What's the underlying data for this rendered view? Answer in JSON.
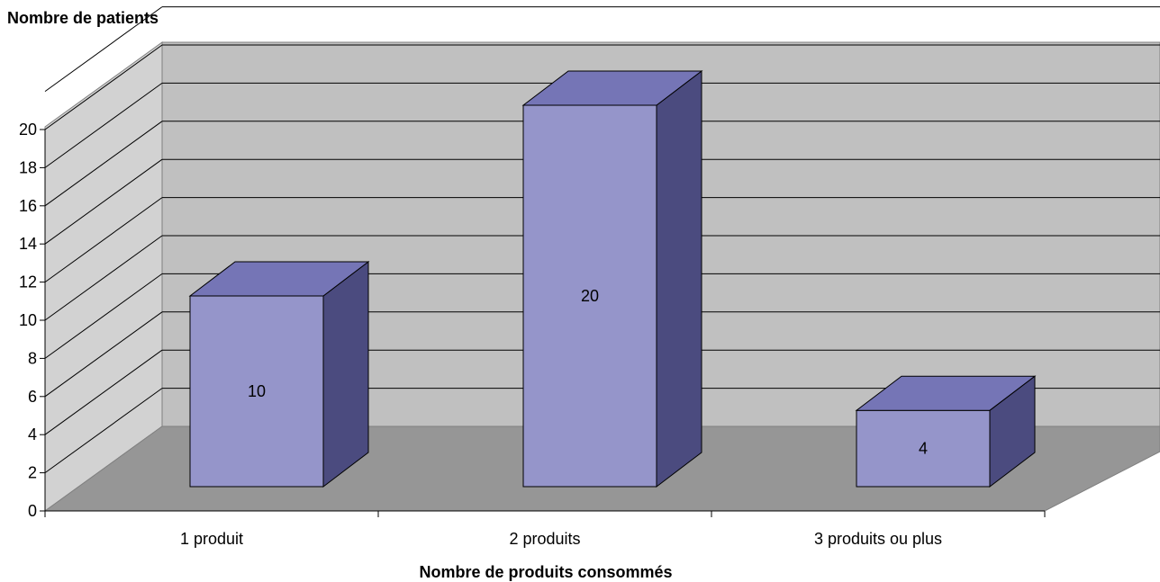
{
  "chart_data": {
    "type": "bar",
    "style": "3d-column",
    "categories": [
      "1 produit",
      "2 produits",
      "3 produits ou plus"
    ],
    "values": [
      10,
      20,
      4
    ],
    "data_labels": [
      "10",
      "20",
      "4"
    ],
    "title": "",
    "ylabel": "Nombre de patients",
    "xlabel": "Nombre de produits consommés",
    "ylim": [
      0,
      20
    ],
    "yticks": [
      "0",
      "2",
      "4",
      "6",
      "8",
      "10",
      "12",
      "14",
      "16",
      "18",
      "20"
    ],
    "grid": true,
    "legend": "none",
    "colors": {
      "bar_front": "#9595CA",
      "bar_top": "#7575B6",
      "bar_side": "#4B4B7F",
      "back_wall": "#C0C0C0",
      "side_wall": "#D2D2D2",
      "floor": "#969696"
    }
  }
}
